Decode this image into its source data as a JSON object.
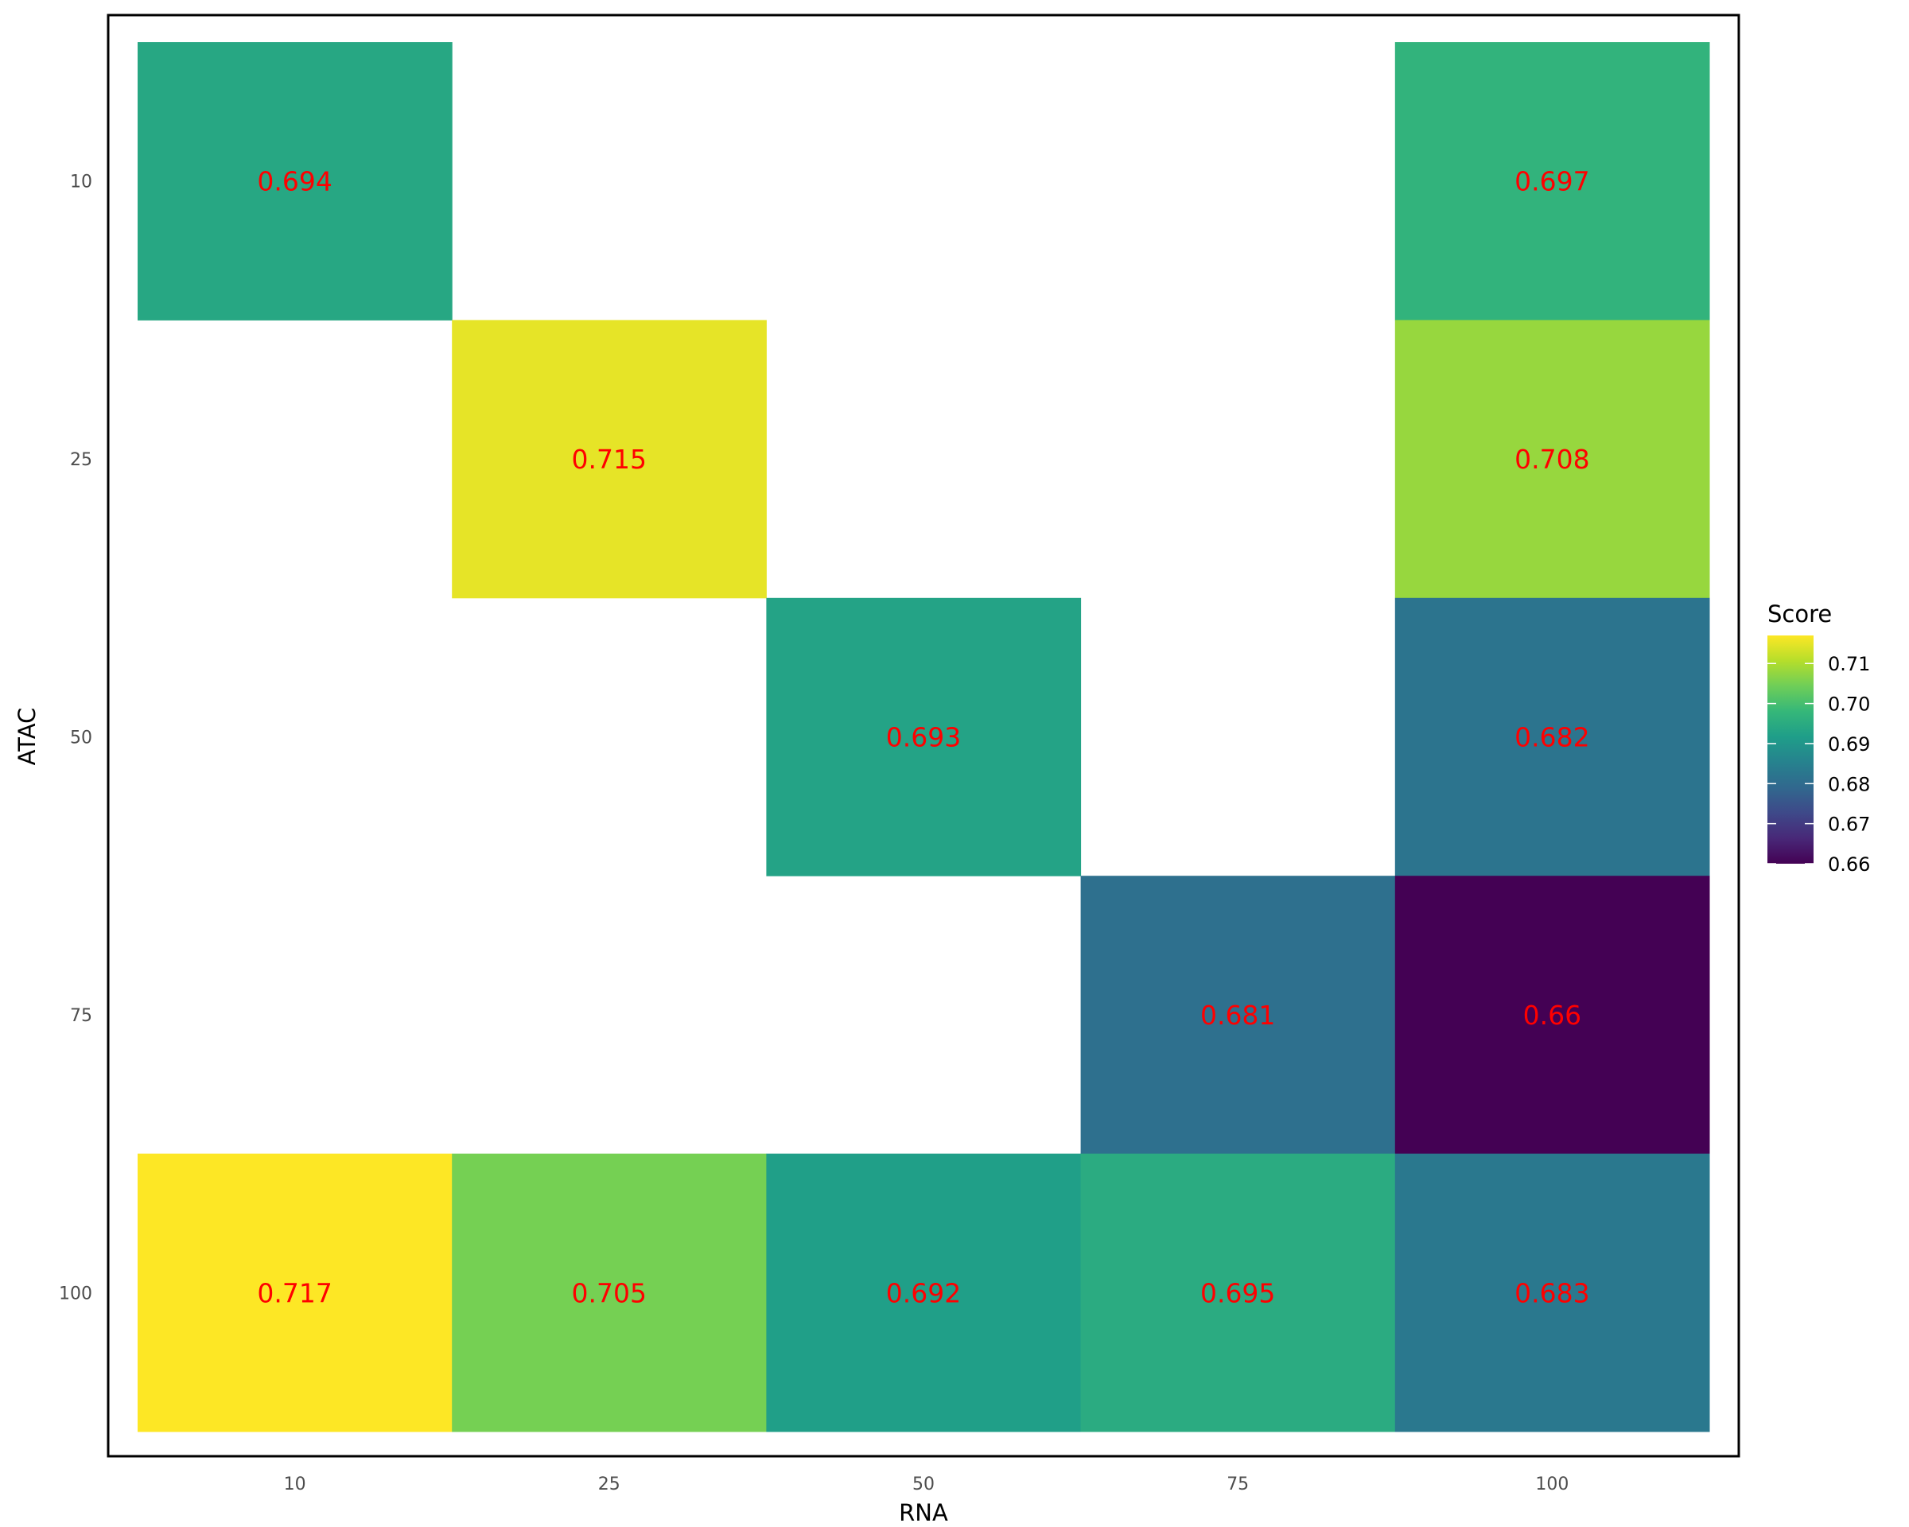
{
  "chart_data": {
    "type": "heatmap",
    "xlabel": "RNA",
    "ylabel": "ATAC",
    "x_categories": [
      "10",
      "25",
      "50",
      "75",
      "100"
    ],
    "y_categories": [
      "10",
      "25",
      "50",
      "75",
      "100"
    ],
    "cells": [
      {
        "x": "10",
        "y": "10",
        "value": 0.694,
        "label": "0.694"
      },
      {
        "x": "100",
        "y": "10",
        "value": 0.697,
        "label": "0.697"
      },
      {
        "x": "25",
        "y": "25",
        "value": 0.715,
        "label": "0.715"
      },
      {
        "x": "100",
        "y": "25",
        "value": 0.708,
        "label": "0.708"
      },
      {
        "x": "50",
        "y": "50",
        "value": 0.693,
        "label": "0.693"
      },
      {
        "x": "100",
        "y": "50",
        "value": 0.682,
        "label": "0.682"
      },
      {
        "x": "75",
        "y": "75",
        "value": 0.681,
        "label": "0.681"
      },
      {
        "x": "100",
        "y": "75",
        "value": 0.66,
        "label": "0.66"
      },
      {
        "x": "10",
        "y": "100",
        "value": 0.717,
        "label": "0.717"
      },
      {
        "x": "25",
        "y": "100",
        "value": 0.705,
        "label": "0.705"
      },
      {
        "x": "50",
        "y": "100",
        "value": 0.692,
        "label": "0.692"
      },
      {
        "x": "75",
        "y": "100",
        "value": 0.695,
        "label": "0.695"
      },
      {
        "x": "100",
        "y": "100",
        "value": 0.683,
        "label": "0.683"
      }
    ],
    "legend": {
      "title": "Score",
      "ticks": [
        "0.66",
        "0.67",
        "0.68",
        "0.69",
        "0.70",
        "0.71"
      ],
      "tick_values": [
        0.66,
        0.67,
        0.68,
        0.69,
        0.7,
        0.71
      ],
      "range": [
        0.66,
        0.717
      ],
      "placement": "right",
      "colormap": "viridis"
    },
    "label_color": "#ff0000"
  }
}
